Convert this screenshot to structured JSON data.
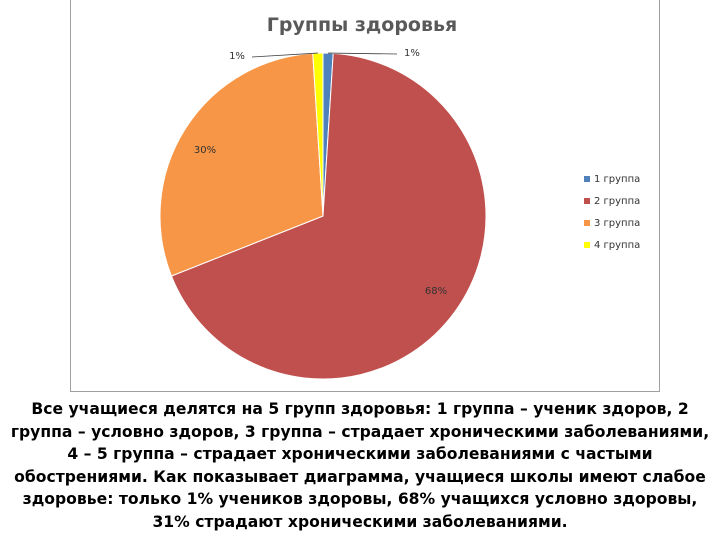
{
  "chart_data": {
    "type": "pie",
    "title": "Группы здоровья",
    "categories": [
      "1 группа",
      "2 группа",
      "3 группа",
      "4 группа"
    ],
    "values": [
      1,
      68,
      30,
      1
    ],
    "value_labels": [
      "1%",
      "68%",
      "30%",
      "1%"
    ],
    "colors": [
      "#4f81bd",
      "#c0504d",
      "#f79646",
      "#ffff00"
    ],
    "legend_position": "right"
  },
  "caption": "Все учащиеся делятся на 5 групп здоровья: 1 группа – ученик здоров, 2 группа – условно здоров, 3 группа – страдает хроническими заболеваниями, 4 – 5 группа – страдает хроническими заболеваниями с частыми обострениями. Как показывает диаграмма, учащиеся школы имеют слабое здоровье: только 1% учеников здоровы, 68% учащихся условно здоровы, 31% страдают хроническими заболеваниями."
}
